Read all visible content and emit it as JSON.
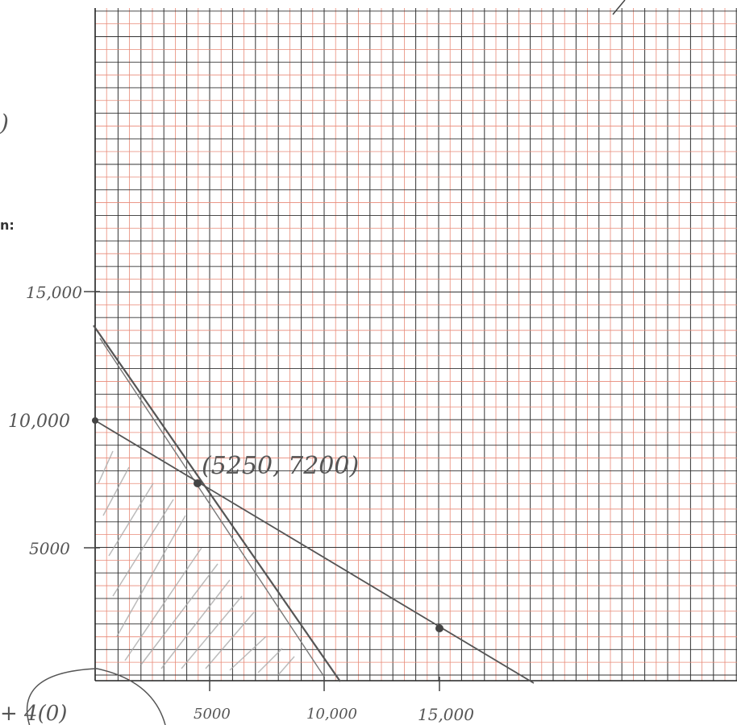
{
  "margin": {
    "fragment": "n:",
    "paren": ")",
    "bottom_expression": "+ 4(0)"
  },
  "graph": {
    "y_labels": [
      "15,000",
      "10,000",
      "5000"
    ],
    "x_labels": [
      "5000",
      "10,000",
      "15,000"
    ],
    "annotation": "(5250, 7200)"
  }
}
